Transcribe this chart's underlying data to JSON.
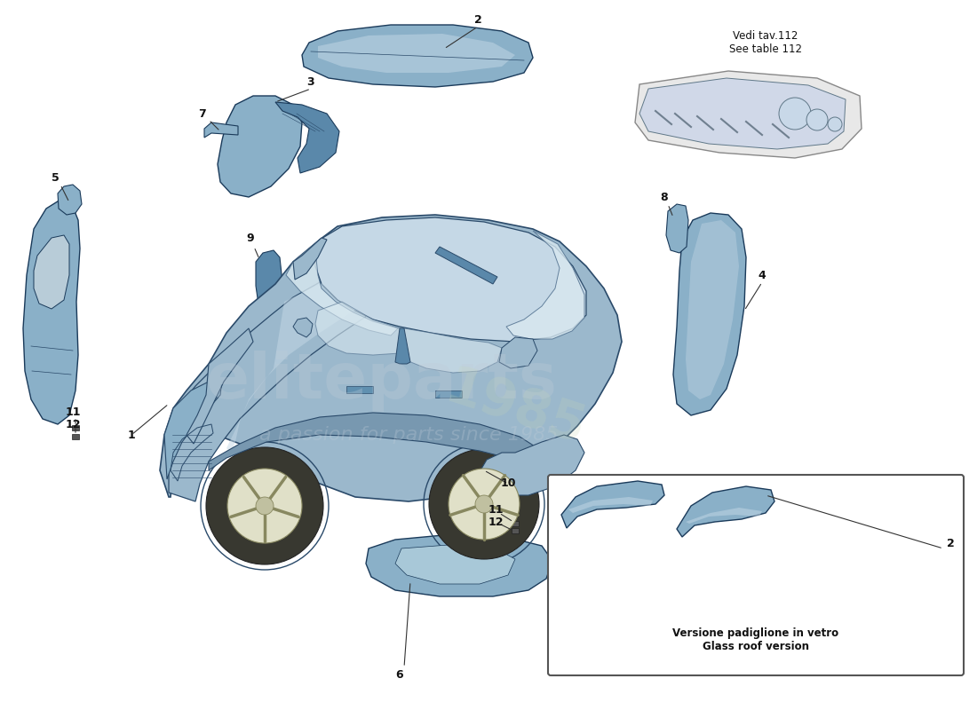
{
  "bg": "#ffffff",
  "car_fill": "#9bb8cc",
  "car_fill_light": "#c5d8e6",
  "car_stroke": "#2a4a6a",
  "car_stroke_thin": "#4a6a8a",
  "part_fill": "#8ab0c8",
  "part_fill_dark": "#5a88aa",
  "part_stroke": "#1a3a5a",
  "glass_fill": "#d8e8f0",
  "wheel_fill": "#e0e0c8",
  "wheel_stroke": "#888860",
  "tire_fill": "#404040",
  "outline_only": "#2a4a6a",
  "white": "#ffffff",
  "wm_color": "#b8c8d8",
  "wm_color2": "#c8d8a8",
  "label_color": "#111111",
  "vedi_text": "Vedi tav.112\nSee table 112",
  "inset_text1": "Versione padiglione in vetro",
  "inset_text2": "Glass roof version"
}
